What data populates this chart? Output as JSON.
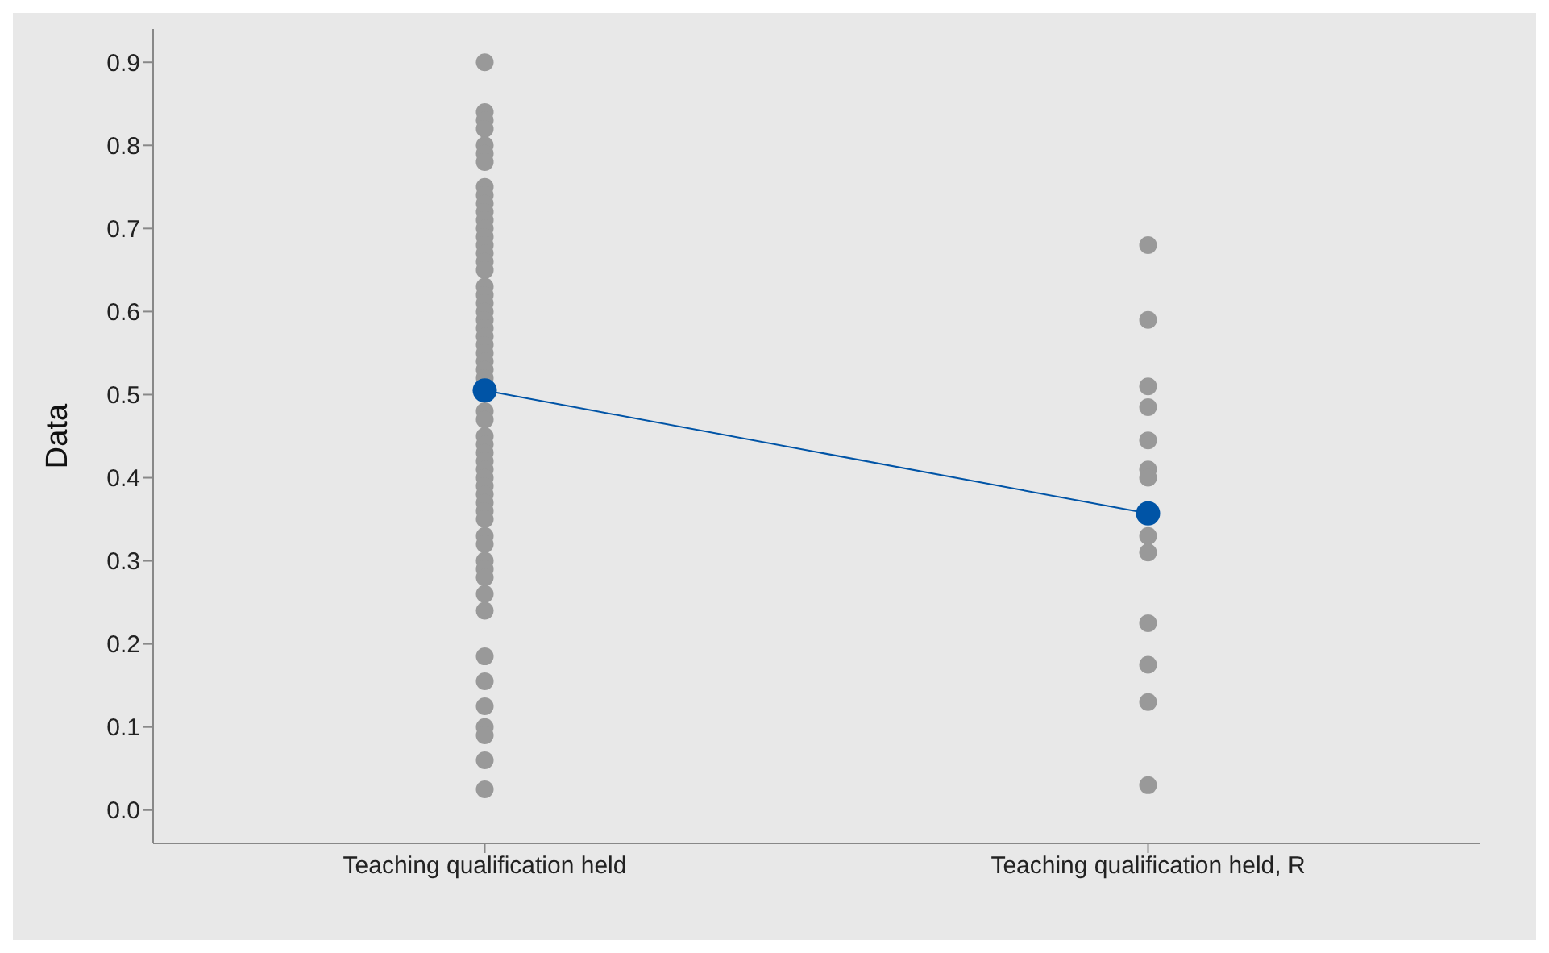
{
  "chart_data": {
    "type": "scatter",
    "ylabel": "Data",
    "categories": [
      "Teaching qualification held",
      "Teaching qualification held, R"
    ],
    "ylim": [
      -0.04,
      0.94
    ],
    "yticks": [
      {
        "value": 0,
        "label": "0.0"
      },
      0.1,
      0.2,
      0.3,
      0.4,
      0.5,
      0.6,
      0.7,
      0.8,
      0.9
    ],
    "grid": false,
    "legend": false,
    "series": [
      {
        "type": "scatter",
        "color": "#999999",
        "marker": "circle",
        "x": [
          "Teaching qualification held",
          "Teaching qualification held",
          "Teaching qualification held",
          "Teaching qualification held",
          "Teaching qualification held",
          "Teaching qualification held",
          "Teaching qualification held",
          "Teaching qualification held",
          "Teaching qualification held",
          "Teaching qualification held",
          "Teaching qualification held",
          "Teaching qualification held",
          "Teaching qualification held",
          "Teaching qualification held",
          "Teaching qualification held",
          "Teaching qualification held",
          "Teaching qualification held",
          "Teaching qualification held",
          "Teaching qualification held",
          "Teaching qualification held",
          "Teaching qualification held",
          "Teaching qualification held",
          "Teaching qualification held",
          "Teaching qualification held",
          "Teaching qualification held",
          "Teaching qualification held",
          "Teaching qualification held",
          "Teaching qualification held",
          "Teaching qualification held",
          "Teaching qualification held",
          "Teaching qualification held",
          "Teaching qualification held",
          "Teaching qualification held",
          "Teaching qualification held",
          "Teaching qualification held",
          "Teaching qualification held",
          "Teaching qualification held",
          "Teaching qualification held",
          "Teaching qualification held",
          "Teaching qualification held",
          "Teaching qualification held",
          "Teaching qualification held",
          "Teaching qualification held",
          "Teaching qualification held",
          "Teaching qualification held",
          "Teaching qualification held",
          "Teaching qualification held",
          "Teaching qualification held",
          "Teaching qualification held",
          "Teaching qualification held",
          "Teaching qualification held",
          "Teaching qualification held",
          "Teaching qualification held",
          "Teaching qualification held",
          "Teaching qualification held",
          "Teaching qualification held",
          "Teaching qualification held",
          "Teaching qualification held"
        ],
        "values": [
          0.9,
          0.84,
          0.83,
          0.82,
          0.8,
          0.79,
          0.78,
          0.75,
          0.74,
          0.73,
          0.72,
          0.71,
          0.7,
          0.69,
          0.68,
          0.67,
          0.66,
          0.65,
          0.63,
          0.62,
          0.61,
          0.6,
          0.59,
          0.58,
          0.57,
          0.56,
          0.55,
          0.54,
          0.53,
          0.52,
          null,
          0.48,
          0.47,
          0.45,
          0.44,
          0.43,
          0.42,
          0.41,
          0.4,
          0.39,
          0.38,
          0.37,
          0.36,
          0.35,
          0.33,
          0.32,
          0.3,
          0.29,
          0.28,
          0.26,
          0.24,
          0.185,
          0.155,
          0.125,
          0.1,
          0.09,
          0.06,
          0.025
        ]
      },
      {
        "type": "scatter",
        "color": "#999999",
        "marker": "circle",
        "x": [
          "Teaching qualification held, R",
          "Teaching qualification held, R",
          "Teaching qualification held, R",
          "Teaching qualification held, R",
          "Teaching qualification held, R",
          "Teaching qualification held, R",
          "Teaching qualification held, R",
          "Teaching qualification held, R",
          "Teaching qualification held, R",
          "Teaching qualification held, R",
          "Teaching qualification held, R",
          "Teaching qualification held, R",
          "Teaching qualification held, R",
          "Teaching qualification held, R",
          "Teaching qualification held, R"
        ],
        "values": [
          0.68,
          0.59,
          0.51,
          0.485,
          0.445,
          0.41,
          0.4,
          null,
          null,
          0.33,
          0.31,
          0.225,
          0.175,
          0.13,
          0.03
        ]
      },
      {
        "type": "line",
        "color": "#0054a6",
        "marker": "circle",
        "line_style": "solid",
        "values": [
          0.505,
          0.357
        ]
      }
    ]
  }
}
